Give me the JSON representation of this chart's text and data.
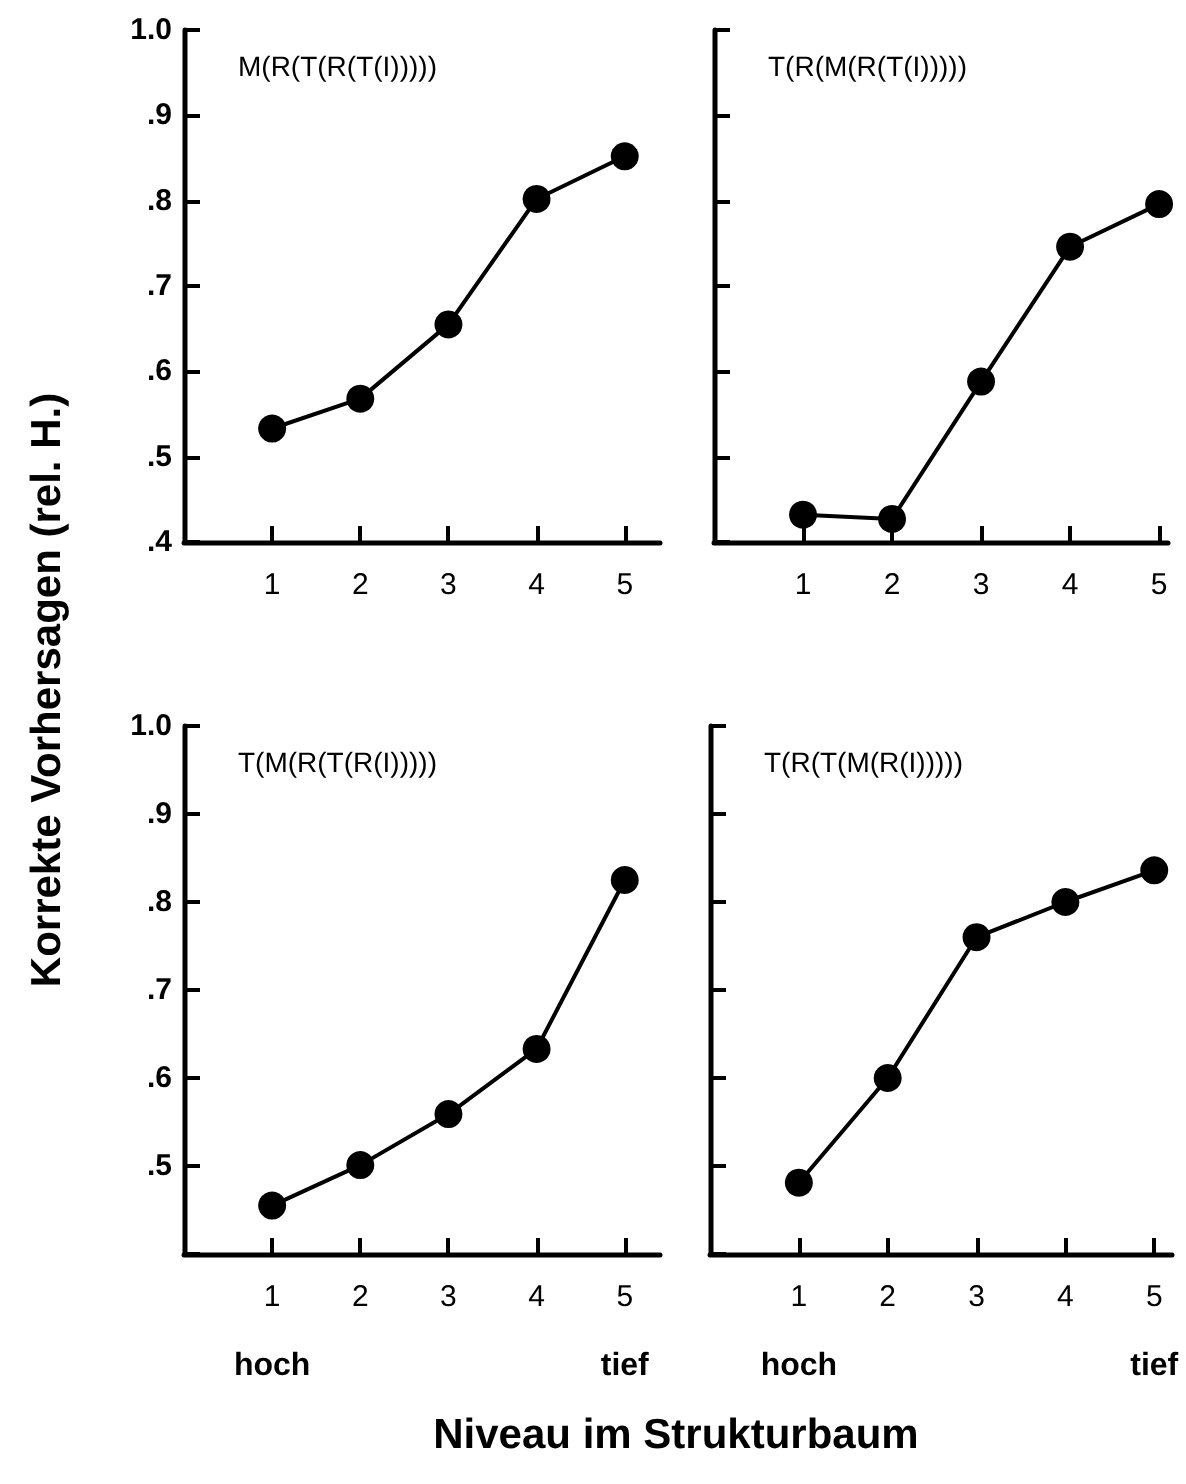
{
  "chart_data": [
    {
      "type": "line",
      "title": "M(R(T(R(T(I)))))",
      "ylabel": "Korrekte Vorhersagen (rel. H.)",
      "x": [
        1,
        2,
        3,
        4,
        5
      ],
      "values": [
        0.533,
        0.568,
        0.655,
        0.802,
        0.852
      ],
      "color": "#000000",
      "marker": "circle",
      "line_style": "solid",
      "grid": false,
      "xlim": [
        0,
        5.4
      ],
      "xticks": [
        1,
        2,
        3,
        4,
        5
      ],
      "ylim": [
        0.4,
        1.0
      ],
      "yticks": [
        {
          "value": 0.4,
          "label": ".4"
        },
        {
          "value": 0.5,
          "label": ".5"
        },
        {
          "value": 0.6,
          "label": ".6"
        },
        {
          "value": 0.7,
          "label": ".7"
        },
        {
          "value": 0.8,
          "label": ".8"
        },
        {
          "value": 0.9,
          "label": ".9"
        },
        {
          "value": 1.0,
          "label": "1.0"
        }
      ]
    },
    {
      "type": "line",
      "title": "T(R(M(R(T(I)))))",
      "x": [
        1,
        2,
        3,
        4,
        5
      ],
      "values": [
        0.432,
        0.427,
        0.588,
        0.746,
        0.796
      ],
      "color": "#000000",
      "marker": "circle",
      "line_style": "solid",
      "grid": false,
      "tick_labels": "x",
      "xlim": [
        0,
        5.1
      ],
      "xticks": [
        1,
        2,
        3,
        4,
        5
      ],
      "ylim": [
        0.4,
        1.0
      ],
      "yticks": [
        {
          "value": 0.4,
          "label": null
        },
        {
          "value": 0.5,
          "label": null
        },
        {
          "value": 0.6,
          "label": null
        },
        {
          "value": 0.7,
          "label": null
        },
        {
          "value": 0.8,
          "label": null
        },
        {
          "value": 0.9,
          "label": null
        },
        {
          "value": 1.0,
          "label": null
        }
      ]
    },
    {
      "type": "line",
      "title": "T(M(R(T(R(I)))))",
      "xlabel": "Niveau im Strukturbaum",
      "annotations": [
        "hoch",
        "tief"
      ],
      "x": [
        1,
        2,
        3,
        4,
        5
      ],
      "values": [
        0.455,
        0.501,
        0.559,
        0.633,
        0.825
      ],
      "color": "#000000",
      "marker": "circle",
      "line_style": "solid",
      "grid": false,
      "xlim": [
        0,
        5.4
      ],
      "xticks": [
        1,
        2,
        3,
        4,
        5
      ],
      "ylim": [
        0.4,
        1.0
      ],
      "yticks": [
        {
          "value": 0.4,
          "label": null
        },
        {
          "value": 0.5,
          "label": ".5"
        },
        {
          "value": 0.6,
          "label": ".6"
        },
        {
          "value": 0.7,
          "label": ".7"
        },
        {
          "value": 0.8,
          "label": ".8"
        },
        {
          "value": 0.9,
          "label": ".9"
        },
        {
          "value": 1.0,
          "label": "1.0"
        }
      ]
    },
    {
      "type": "line",
      "title": "T(R(T(M(R(I)))))",
      "annotations": [
        "hoch",
        "tief"
      ],
      "x": [
        1,
        2,
        3,
        4,
        5
      ],
      "values": [
        0.481,
        0.6,
        0.76,
        0.8,
        0.836
      ],
      "color": "#000000",
      "marker": "circle",
      "line_style": "solid",
      "grid": false,
      "tick_labels": "x",
      "xlim": [
        0,
        5.2
      ],
      "xticks": [
        1,
        2,
        3,
        4,
        5
      ],
      "ylim": [
        0.4,
        1.0
      ],
      "yticks": [
        {
          "value": 0.4,
          "label": null
        },
        {
          "value": 0.5,
          "label": null
        },
        {
          "value": 0.6,
          "label": null
        },
        {
          "value": 0.7,
          "label": null
        },
        {
          "value": 0.8,
          "label": null
        },
        {
          "value": 0.9,
          "label": null
        },
        {
          "value": 1.0,
          "label": null
        }
      ]
    }
  ]
}
